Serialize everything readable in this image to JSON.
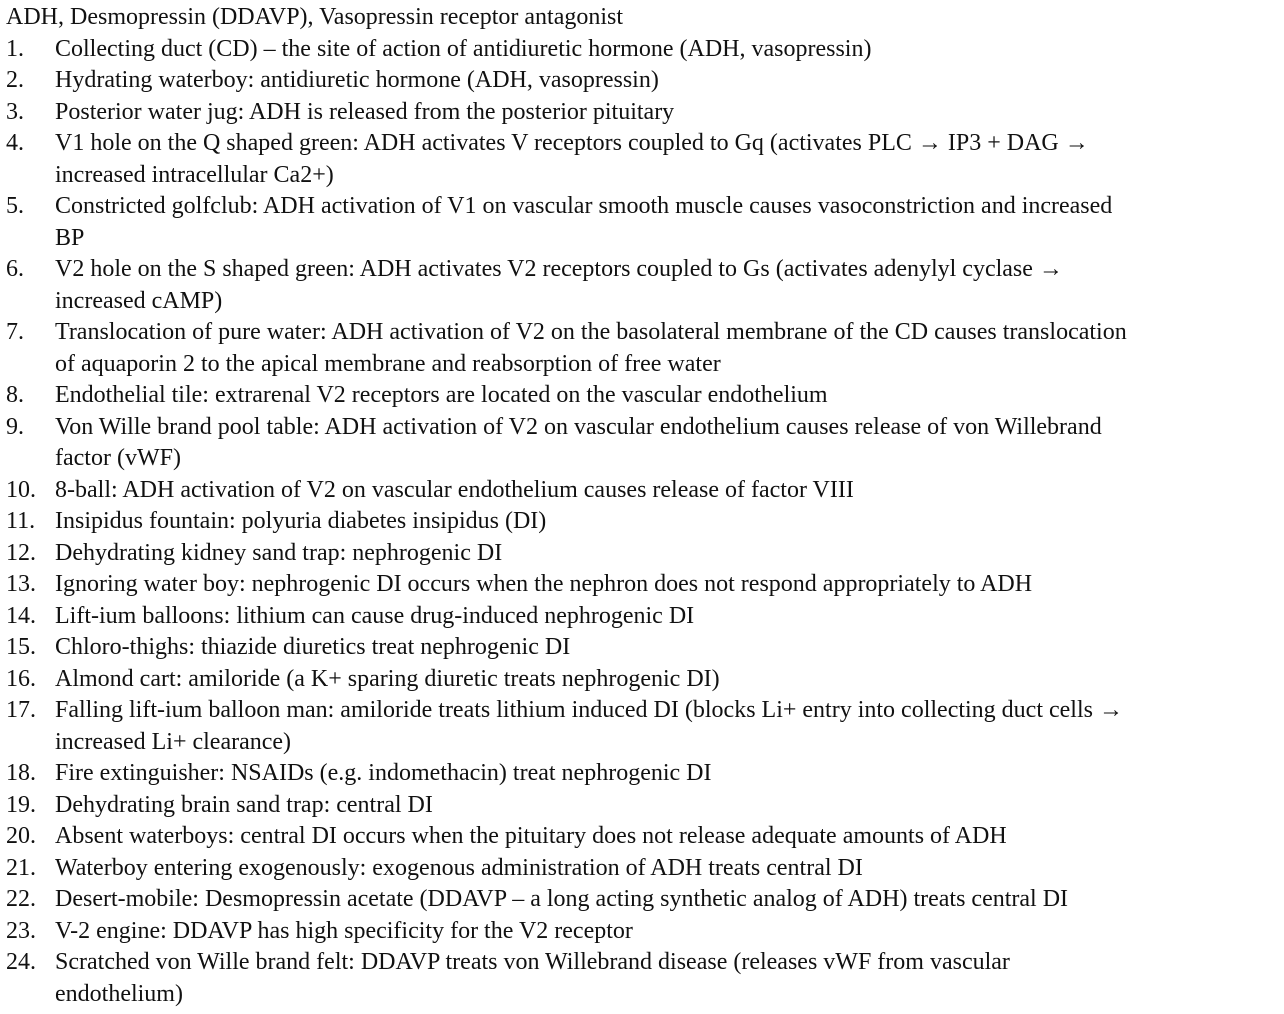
{
  "document": {
    "title": "ADH, Desmopressin (DDAVP), Vasopressin receptor antagonist",
    "items": [
      {
        "num": "1.",
        "text": "Collecting duct (CD) – the site of action of antidiuretic hormone (ADH, vasopressin)"
      },
      {
        "num": "2.",
        "text": "Hydrating waterboy: antidiuretic hormone (ADH, vasopressin)"
      },
      {
        "num": "3.",
        "text": "Posterior water jug: ADH is released from the posterior pituitary"
      },
      {
        "num": "4.",
        "text": "V1 hole on the Q shaped green: ADH activates V receptors coupled to Gq (activates PLC → IP3 + DAG →\nincreased intracellular Ca2+)"
      },
      {
        "num": "5.",
        "text": "Constricted golfclub: ADH activation of V1 on vascular smooth muscle causes vasoconstriction and increased\nBP"
      },
      {
        "num": "6.",
        "text": "V2 hole on the S shaped green: ADH activates V2 receptors coupled to Gs (activates adenylyl cyclase →\nincreased cAMP)"
      },
      {
        "num": "7.",
        "text": "Translocation of pure water: ADH activation of V2 on the basolateral membrane of the CD causes translocation\nof aquaporin 2 to the apical membrane and reabsorption of free water"
      },
      {
        "num": "8.",
        "text": "Endothelial tile: extrarenal V2 receptors are located on the vascular endothelium"
      },
      {
        "num": "9.",
        "text": "Von Wille brand pool table: ADH activation of V2 on vascular endothelium causes release of von Willebrand\nfactor (vWF)"
      },
      {
        "num": "10.",
        "text": "8-ball: ADH activation of V2 on vascular endothelium causes release of factor VIII"
      },
      {
        "num": "11.",
        "text": "Insipidus fountain: polyuria diabetes insipidus (DI)"
      },
      {
        "num": "12.",
        "text": "Dehydrating kidney sand trap: nephrogenic DI"
      },
      {
        "num": "13.",
        "text": "Ignoring water boy: nephrogenic DI occurs when the nephron does not respond appropriately to ADH"
      },
      {
        "num": "14.",
        "text": "Lift-ium balloons: lithium can cause drug-induced nephrogenic DI"
      },
      {
        "num": "15.",
        "text": "Chloro-thighs: thiazide diuretics treat nephrogenic DI"
      },
      {
        "num": "16.",
        "text": "Almond cart: amiloride (a K+ sparing diuretic treats nephrogenic DI)"
      },
      {
        "num": "17.",
        "text": "Falling lift-ium balloon man: amiloride treats lithium induced DI (blocks Li+ entry into collecting duct cells →\nincreased Li+ clearance)"
      },
      {
        "num": "18.",
        "text": "Fire extinguisher: NSAIDs (e.g. indomethacin) treat nephrogenic DI"
      },
      {
        "num": "19.",
        "text": "Dehydrating brain sand trap: central DI"
      },
      {
        "num": "20.",
        "text": "Absent waterboys: central DI occurs when the pituitary does not release adequate amounts of ADH"
      },
      {
        "num": "21.",
        "text": "Waterboy entering exogenously: exogenous administration of ADH treats central DI"
      },
      {
        "num": "22.",
        "text": "Desert-mobile: Desmopressin acetate (DDAVP – a long acting synthetic analog of ADH) treats central DI"
      },
      {
        "num": "23.",
        "text": "V-2 engine: DDAVP has high specificity for the V2 receptor"
      },
      {
        "num": "24.",
        "text": "Scratched von Wille brand felt: DDAVP treats von Willebrand disease (releases vWF from vascular\nendothelium)"
      }
    ]
  }
}
